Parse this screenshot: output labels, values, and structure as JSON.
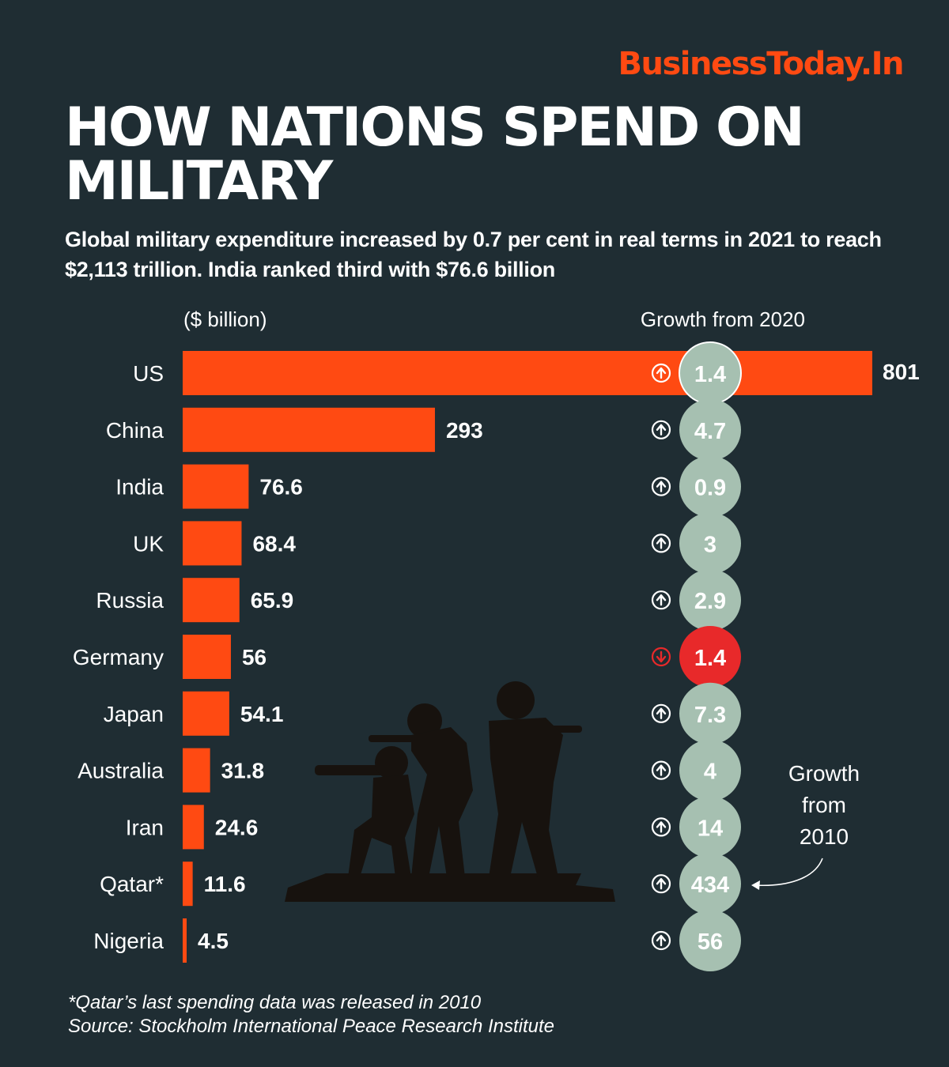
{
  "brand": "BusinessToday.In",
  "title": "HOW NATIONS SPEND ON MILITARY",
  "subtitle": "Global military expenditure increased by 0.7 per cent in real terms in 2021 to reach $2,113 trillion. India ranked third with $76.6 billion",
  "colors": {
    "background": "#1f2d33",
    "bar": "#ff4a12",
    "growth_up_circle": "#a6c0b1",
    "growth_down_circle": "#e8292a",
    "text": "#ffffff",
    "silhouette": "#17120e"
  },
  "chart_data": {
    "type": "bar",
    "orientation": "horizontal",
    "unit_label": "($ billion)",
    "growth_header": "Growth from 2020",
    "categories": [
      "US",
      "China",
      "India",
      "UK",
      "Russia",
      "Germany",
      "Japan",
      "Australia",
      "Iran",
      "Qatar*",
      "Nigeria"
    ],
    "values": [
      801,
      293,
      76.6,
      68.4,
      65.9,
      56,
      54.1,
      31.8,
      24.6,
      11.6,
      4.5
    ],
    "value_labels": [
      "801",
      "293",
      "76.6",
      "68.4",
      "65.9",
      "56",
      "54.1",
      "31.8",
      "24.6",
      "11.6",
      "4.5"
    ],
    "growth": [
      {
        "value": "1.4",
        "direction": "up"
      },
      {
        "value": "4.7",
        "direction": "up"
      },
      {
        "value": "0.9",
        "direction": "up"
      },
      {
        "value": "3",
        "direction": "up"
      },
      {
        "value": "2.9",
        "direction": "up"
      },
      {
        "value": "1.4",
        "direction": "down"
      },
      {
        "value": "7.3",
        "direction": "up"
      },
      {
        "value": "4",
        "direction": "up"
      },
      {
        "value": "14",
        "direction": "up"
      },
      {
        "value": "434",
        "direction": "up"
      },
      {
        "value": "56",
        "direction": "up"
      }
    ],
    "annotation": {
      "lines": [
        "Growth",
        "from",
        "2010"
      ],
      "points_to": "Qatar*"
    },
    "xlim": [
      0,
      801
    ]
  },
  "footnotes": {
    "note": "*Qatar’s last spending data was released in 2010",
    "source": "Source: Stockholm International Peace Research Institute"
  }
}
